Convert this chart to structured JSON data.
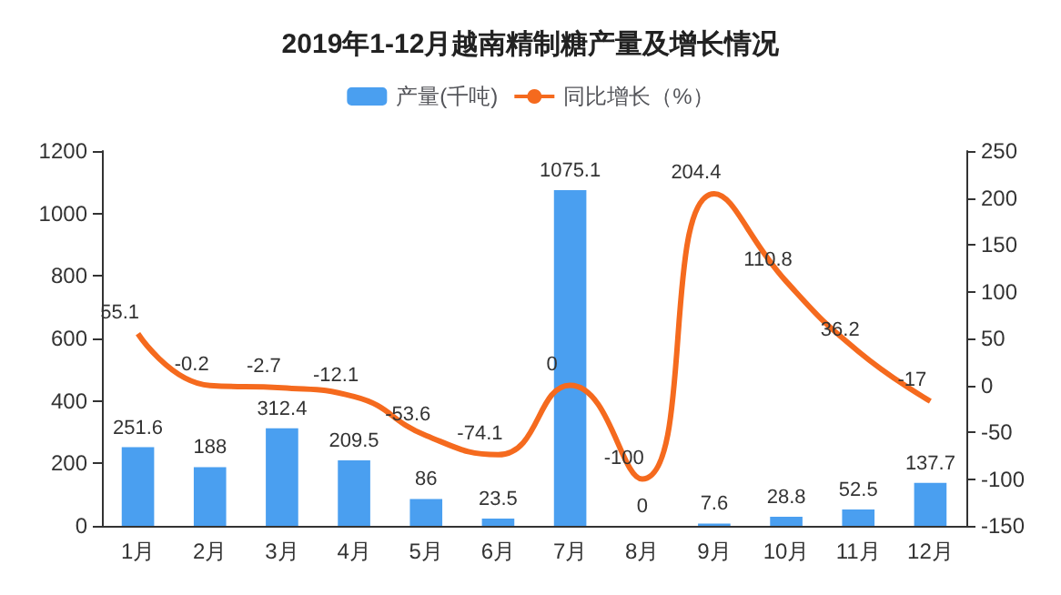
{
  "chart_data": {
    "type": "bar",
    "title": "2019年1-12月越南精制糖产量及增长情况",
    "categories": [
      "1月",
      "2月",
      "3月",
      "4月",
      "5月",
      "6月",
      "7月",
      "8月",
      "9月",
      "10月",
      "11月",
      "12月"
    ],
    "series": [
      {
        "name": "产量(千吨)",
        "color": "#4a9ff0",
        "values": [
          251.6,
          188,
          312.4,
          209.5,
          86,
          23.5,
          1075.1,
          0,
          7.6,
          28.8,
          52.5,
          137.7
        ]
      },
      {
        "name": "同比增长（%）",
        "type": "line",
        "axis": "y2",
        "color": "#f56a1e",
        "marker": "none",
        "values": [
          55.1,
          -0.2,
          -2.7,
          -12.1,
          -53.6,
          -74.1,
          0,
          -100,
          204.4,
          110.8,
          36.2,
          -17
        ]
      }
    ],
    "ylim": [
      0,
      1200
    ],
    "yticks": [
      0,
      200,
      400,
      600,
      800,
      1000,
      1200
    ],
    "y2lim": [
      -150,
      250
    ],
    "y2ticks": [
      -150,
      -100,
      -50,
      0,
      50,
      100,
      150,
      200,
      250
    ],
    "data_labels": true,
    "legend": "top",
    "grid": false
  }
}
